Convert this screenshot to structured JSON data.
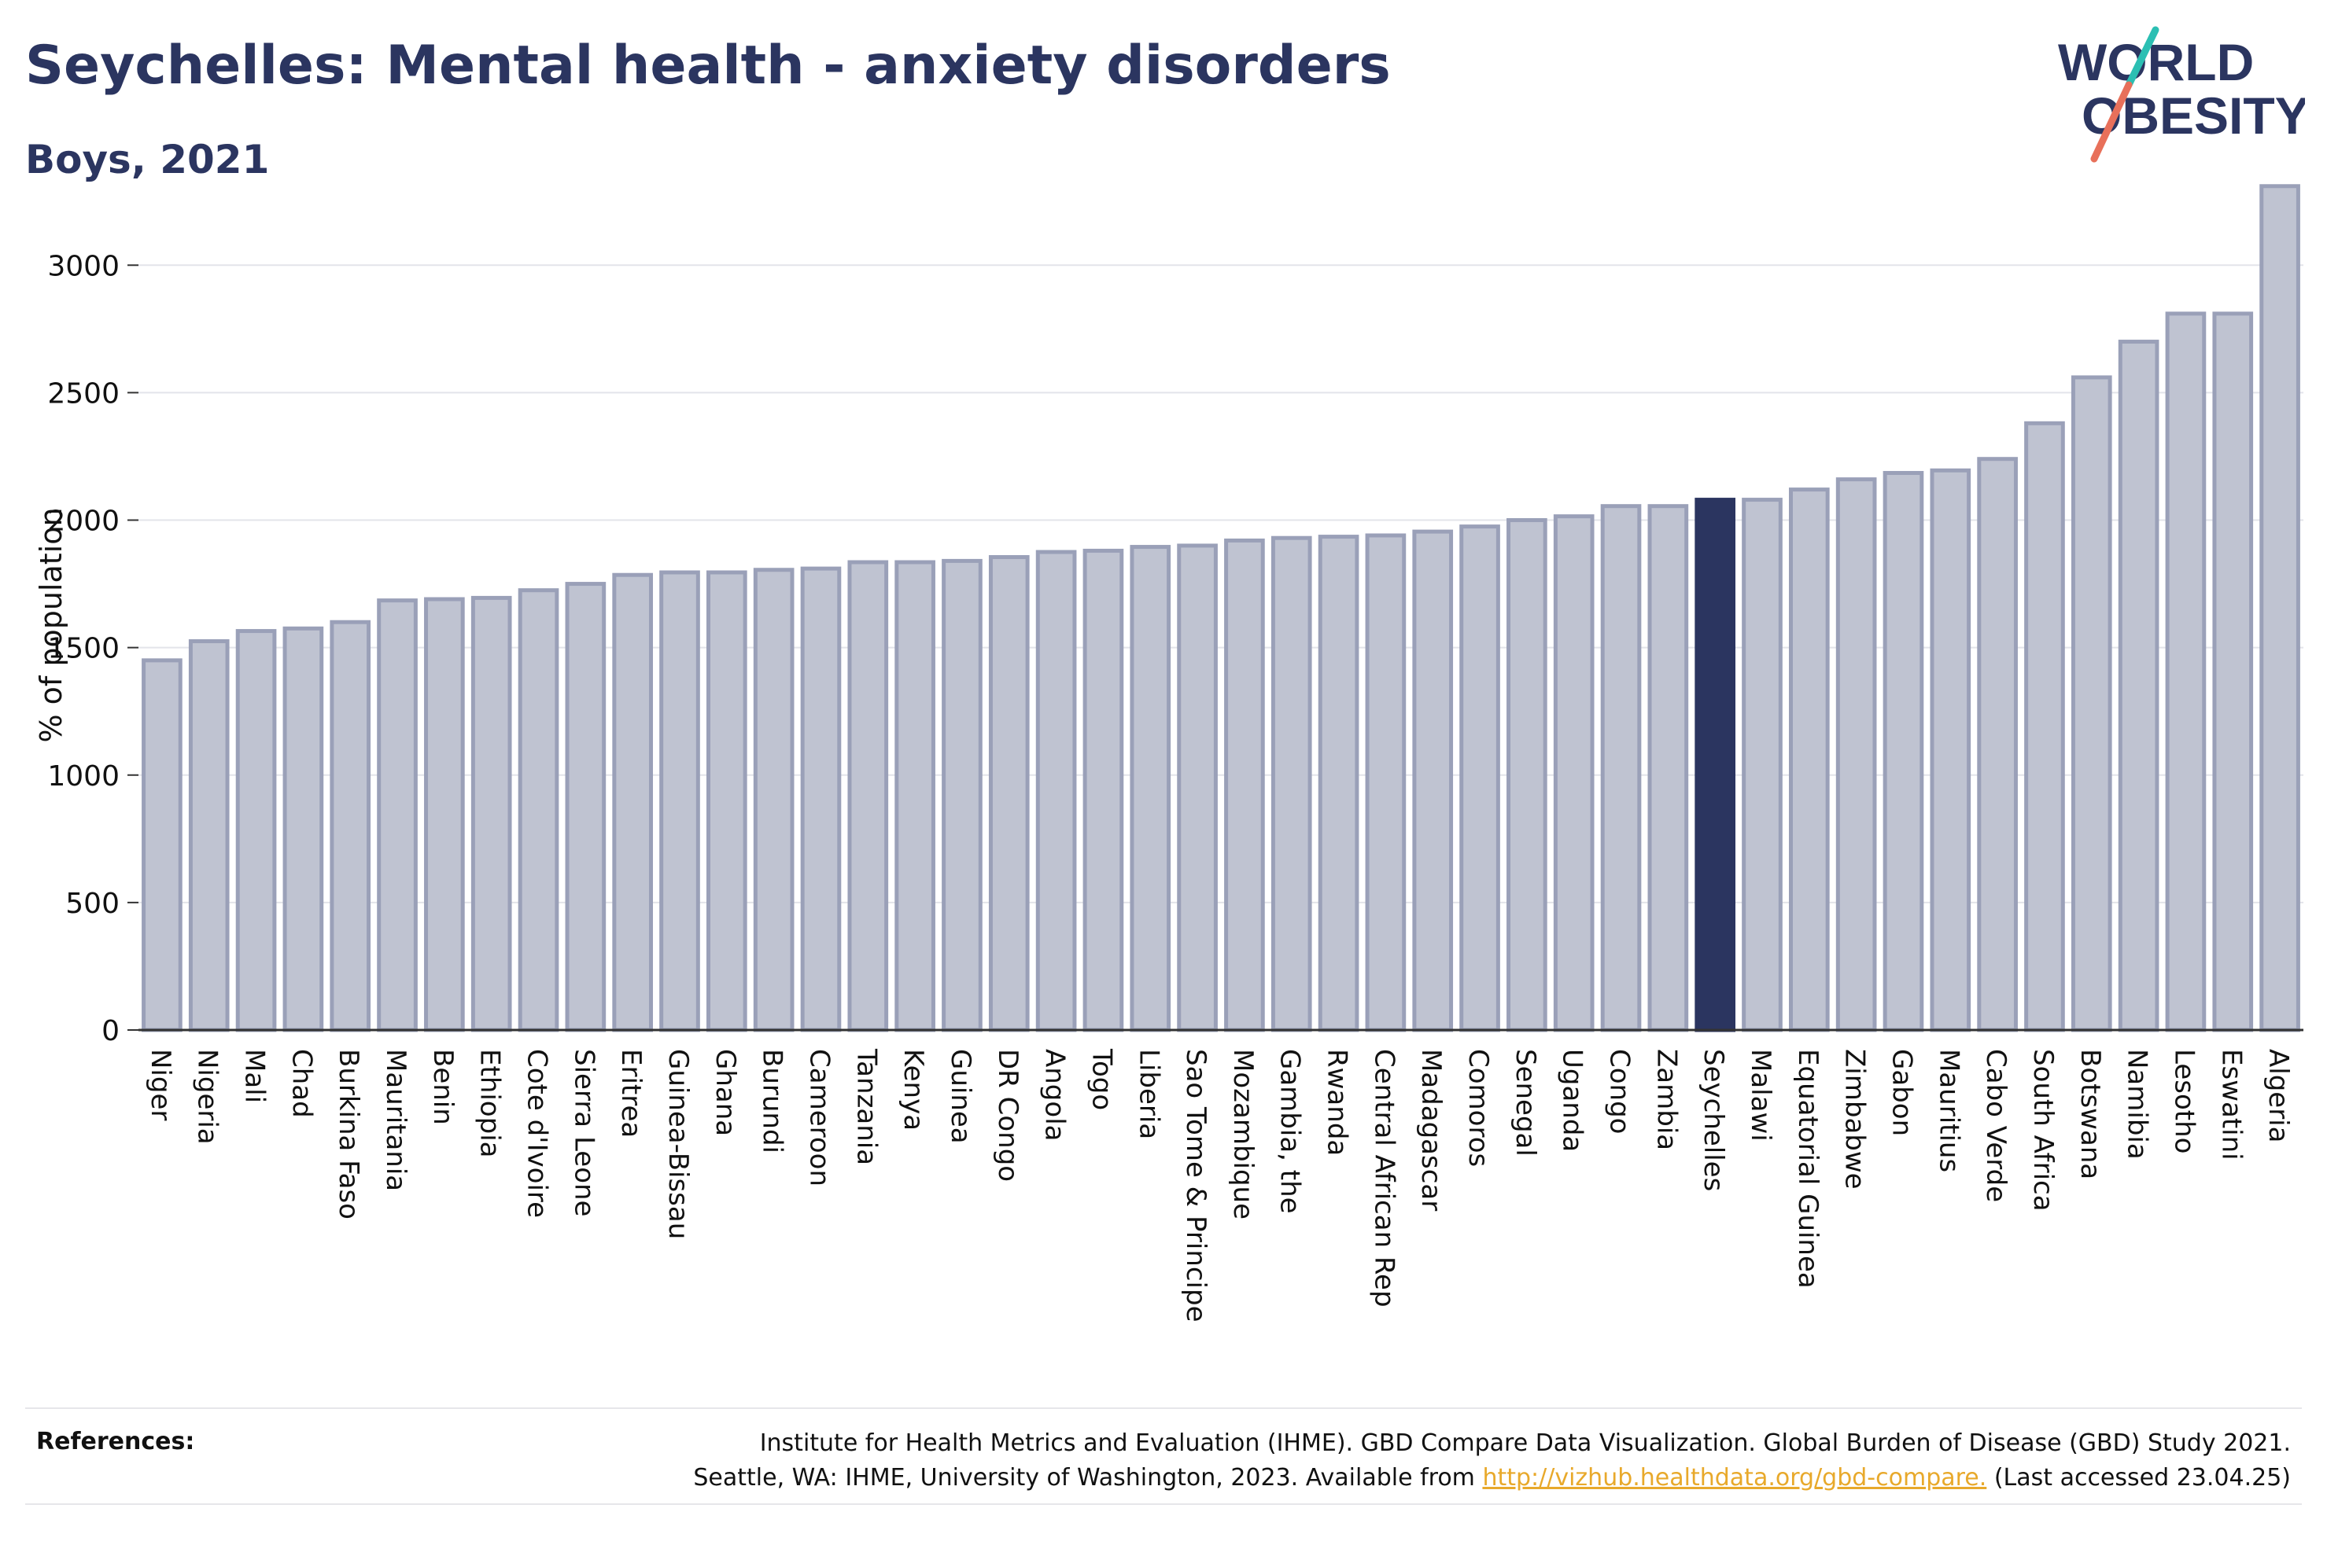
{
  "title": "Seychelles: Mental health - anxiety disorders",
  "subtitle": "Boys, 2021",
  "logo": {
    "line1": "WORLD",
    "line2": "OBESITY"
  },
  "references": {
    "label": "References:",
    "line1": "Institute for Health Metrics and Evaluation (IHME). GBD Compare Data Visualization. Global Burden of Disease (GBD) Study 2021.",
    "line2_prefix": "Seattle, WA: IHME, University of Washington, 2023. Available from ",
    "link": "http://vizhub.healthdata.org/gbd-compare.",
    "line2_suffix": " (Last accessed 23.04.25)"
  },
  "colors": {
    "bar": "#bfc3d1",
    "bar_border": "#9aa0b8",
    "highlight": "#2b3560",
    "text": "#2b3560",
    "accent_teal": "#2bbfb3",
    "accent_coral": "#e8705a",
    "link": "#e8a92b"
  },
  "chart_data": {
    "type": "bar",
    "xlabel": "",
    "ylabel": "% of population",
    "ylim": [
      0,
      3300
    ],
    "yticks": [
      0,
      500,
      1000,
      1500,
      2000,
      2500,
      3000
    ],
    "grid": true,
    "highlight": "Seychelles",
    "categories": [
      "Niger",
      "Nigeria",
      "Mali",
      "Chad",
      "Burkina Faso",
      "Mauritania",
      "Benin",
      "Ethiopia",
      "Cote d'Ivoire",
      "Sierra Leone",
      "Eritrea",
      "Guinea-Bissau",
      "Ghana",
      "Burundi",
      "Cameroon",
      "Tanzania",
      "Kenya",
      "Guinea",
      "DR Congo",
      "Angola",
      "Togo",
      "Liberia",
      "Sao Tome & Principe",
      "Mozambique",
      "Gambia, the",
      "Rwanda",
      "Central African Rep",
      "Madagascar",
      "Comoros",
      "Senegal",
      "Uganda",
      "Congo",
      "Zambia",
      "Seychelles",
      "Malawi",
      "Equatorial Guinea",
      "Zimbabwe",
      "Gabon",
      "Mauritius",
      "Cabo Verde",
      "South Africa",
      "Botswana",
      "Namibia",
      "Lesotho",
      "Eswatini",
      "Algeria"
    ],
    "values": [
      1450,
      1525,
      1565,
      1575,
      1600,
      1685,
      1690,
      1695,
      1725,
      1750,
      1785,
      1795,
      1795,
      1805,
      1810,
      1835,
      1835,
      1840,
      1855,
      1875,
      1880,
      1895,
      1900,
      1920,
      1930,
      1935,
      1940,
      1955,
      1975,
      2000,
      2015,
      2055,
      2055,
      2080,
      2080,
      2120,
      2160,
      2185,
      2195,
      2240,
      2380,
      2560,
      2700,
      2810,
      2810,
      3310
    ]
  }
}
